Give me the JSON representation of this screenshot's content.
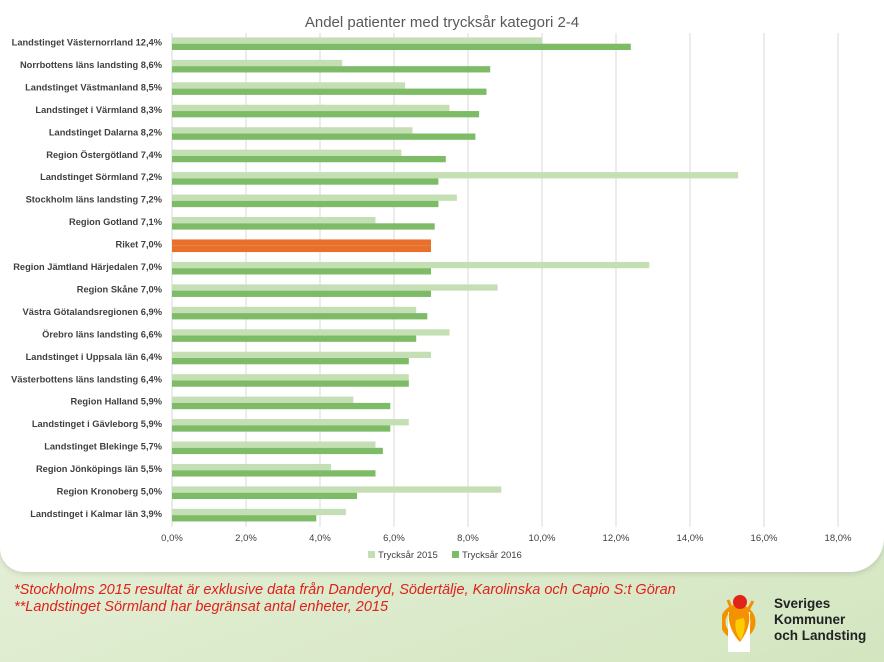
{
  "chart_data": {
    "type": "bar",
    "orientation": "horizontal",
    "title": "Andel patienter med trycksår kategori 2-4",
    "categories": [
      "Landstinget Västernorrland 12,4%",
      "Norrbottens läns landsting 8,6%",
      "Landstinget Västmanland 8,5%",
      "Landstinget i Värmland 8,3%",
      "Landstinget Dalarna 8,2%",
      "Region Östergötland 7,4%",
      "Landstinget Sörmland 7,2%",
      "Stockholm läns landsting 7,2%",
      "Region Gotland 7,1%",
      "Riket 7,0%",
      "Region Jämtland Härjedalen 7,0%",
      "Region Skåne 7,0%",
      "Västra Götalandsregionen 6,9%",
      "Örebro läns landsting 6,6%",
      "Landstinget i Uppsala län 6,4%",
      "Västerbottens läns landsting 6,4%",
      "Region Halland 5,9%",
      "Landstinget i Gävleborg 5,9%",
      "Landstinget Blekinge 5,7%",
      "Region Jönköpings län 5,5%",
      "Region Kronoberg 5,0%",
      "Landstinget i Kalmar län 3,9%"
    ],
    "series": [
      {
        "name": "Trycksår 2015",
        "color": "#c5dfb5",
        "values": [
          10.0,
          4.6,
          6.3,
          7.5,
          6.5,
          6.2,
          15.3,
          7.7,
          5.5,
          7.0,
          12.9,
          8.8,
          6.6,
          7.5,
          7.0,
          6.4,
          4.9,
          6.4,
          5.5,
          4.3,
          8.9,
          4.7
        ]
      },
      {
        "name": "Trycksår 2016",
        "color": "#7dbb67",
        "values": [
          12.4,
          8.6,
          8.5,
          8.3,
          8.2,
          7.4,
          7.2,
          7.2,
          7.1,
          7.0,
          7.0,
          7.0,
          6.9,
          6.6,
          6.4,
          6.4,
          5.9,
          5.9,
          5.7,
          5.5,
          5.0,
          3.9
        ]
      }
    ],
    "highlight": {
      "category_index": 9,
      "series_index": 1,
      "color": "#e8702a"
    },
    "xlim": [
      0,
      18
    ],
    "xticks": [
      0,
      2,
      4,
      6,
      8,
      10,
      12,
      14,
      16,
      18
    ],
    "xtick_labels": [
      "0,0%",
      "2,0%",
      "4,0%",
      "6,0%",
      "8,0%",
      "10,0%",
      "12,0%",
      "14,0%",
      "16,0%",
      "18,0%"
    ],
    "xlabel": "",
    "ylabel": "",
    "grid": true,
    "legend_position": "bottom"
  },
  "footnotes": [
    "*Stockholms 2015 resultat är exklusive data från Danderyd, Södertälje, Karolinska och Capio S:t Göran",
    "**Landstinget Sörmland har begränsat antal enheter, 2015"
  ],
  "logo": {
    "lines": [
      "Sveriges",
      "Kommuner",
      "och Landsting"
    ],
    "colors": {
      "orange": "#f39200",
      "red": "#e2231a",
      "yellow": "#ffcc00"
    }
  }
}
